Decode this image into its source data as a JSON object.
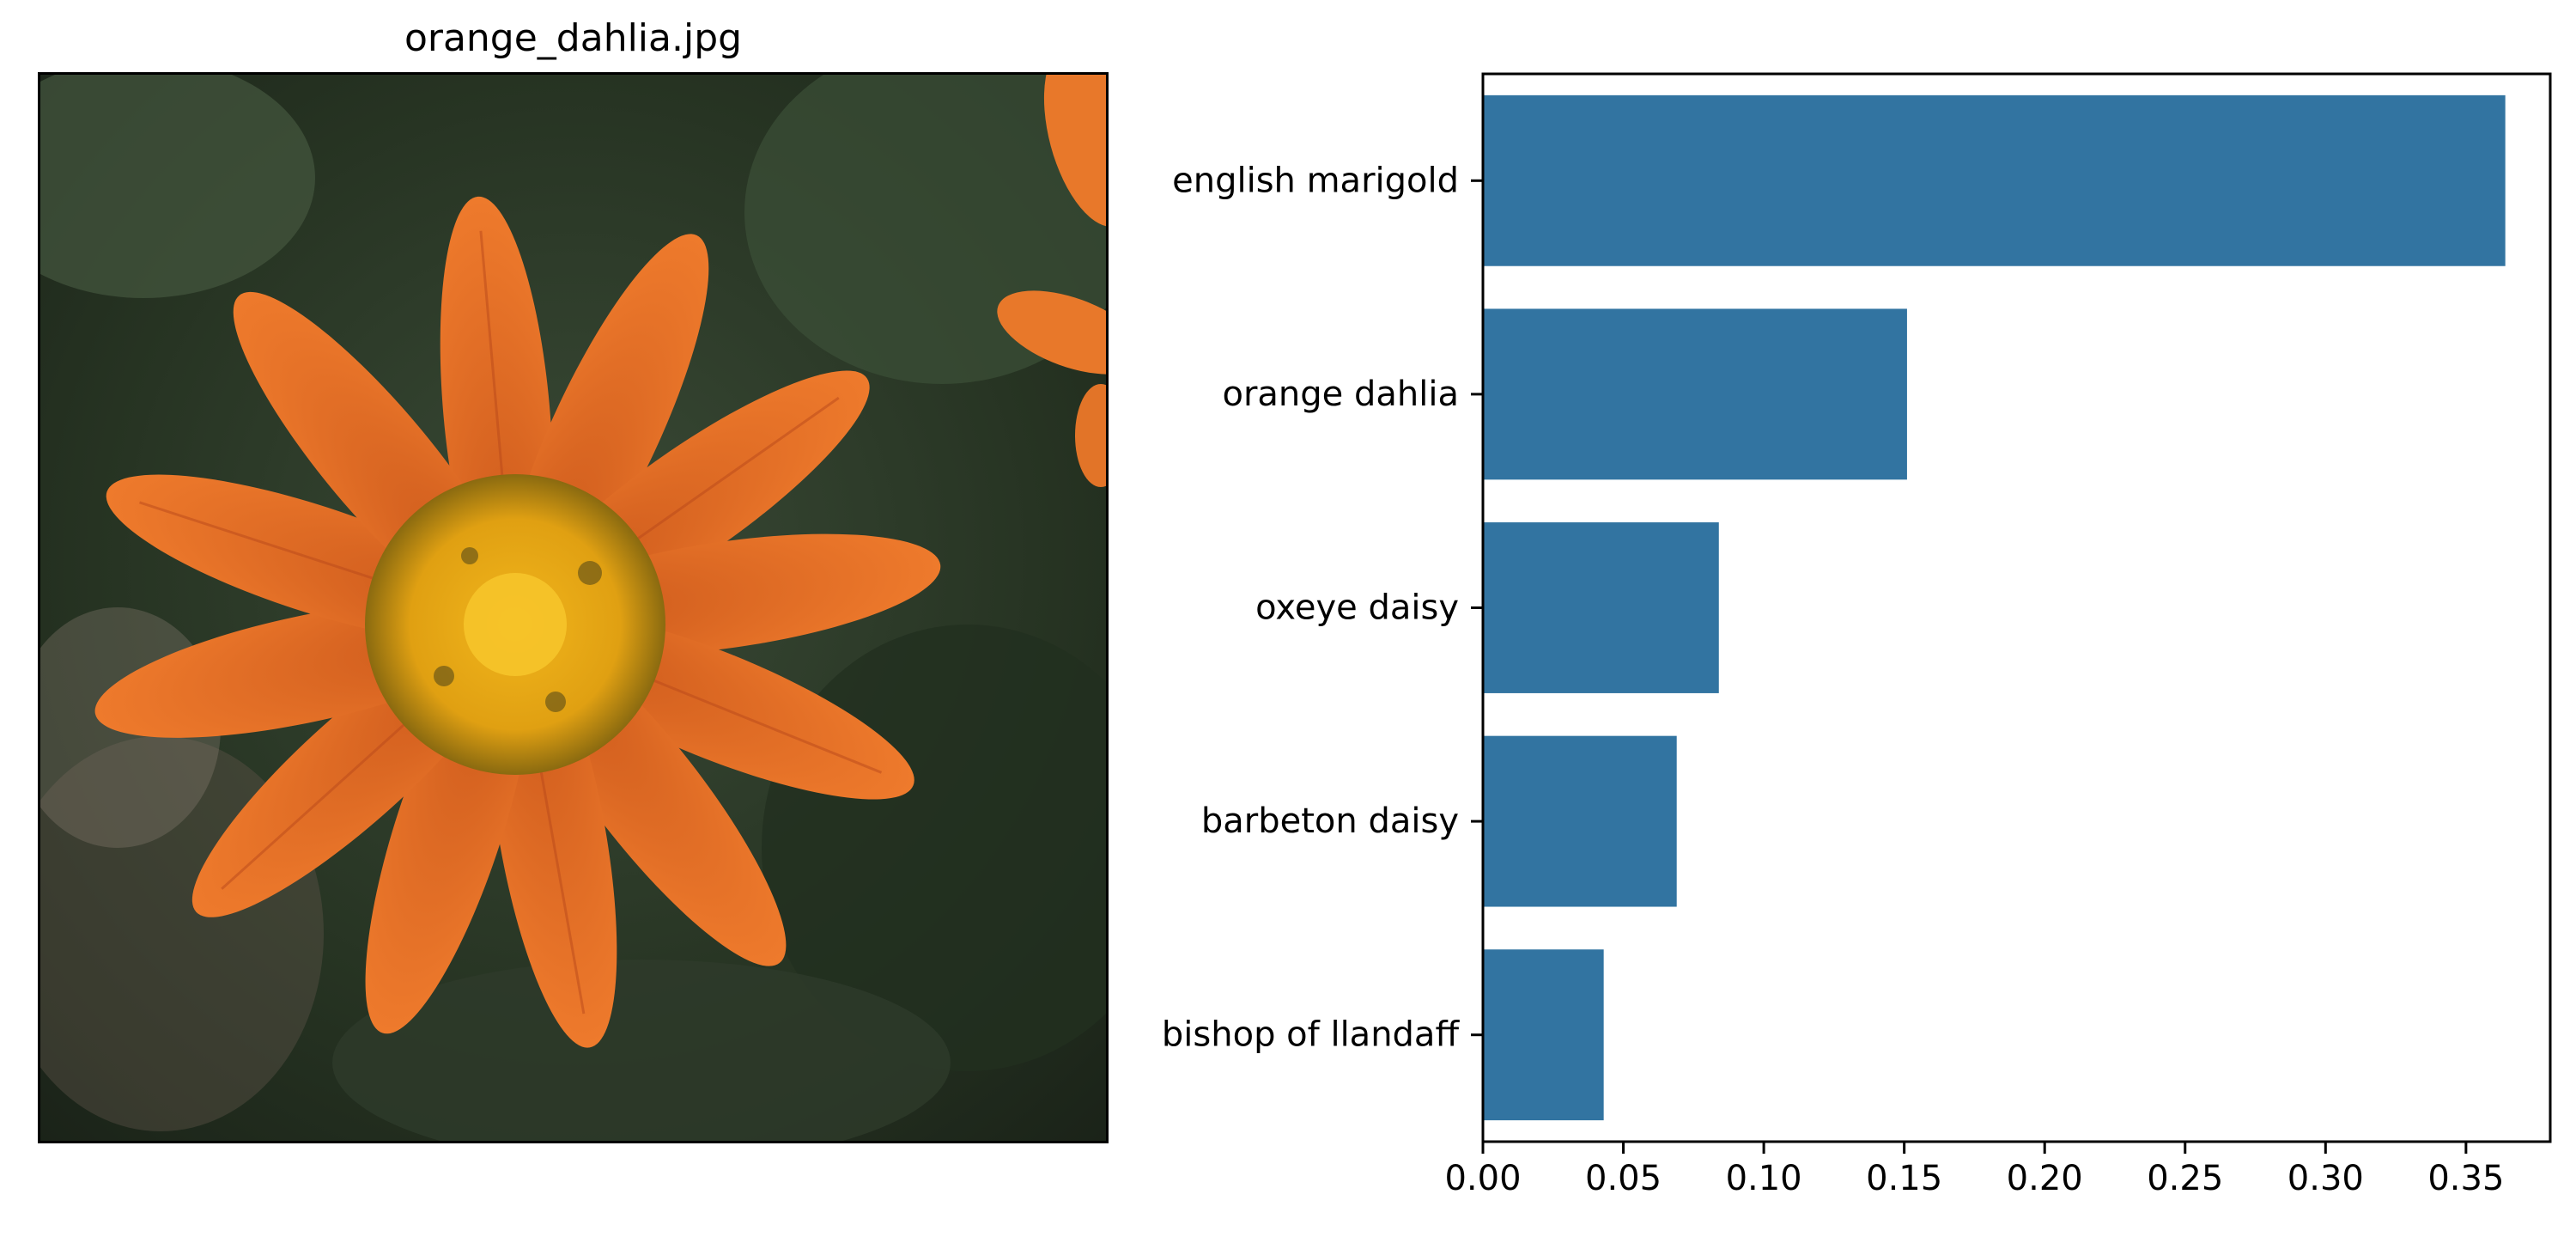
{
  "image_panel": {
    "title": "orange_dahlia.jpg",
    "image_subject": "orange-flower-photo"
  },
  "chart_data": {
    "type": "bar",
    "orientation": "horizontal",
    "categories": [
      "english marigold",
      "orange dahlia",
      "oxeye daisy",
      "barbeton daisy",
      "bishop of llandaff"
    ],
    "values": [
      0.364,
      0.151,
      0.084,
      0.069,
      0.043
    ],
    "xlim": [
      0,
      0.38
    ],
    "x_ticks": [
      "0.00",
      "0.05",
      "0.10",
      "0.15",
      "0.20",
      "0.25",
      "0.30",
      "0.35"
    ],
    "title": "",
    "xlabel": "",
    "ylabel": "",
    "bar_color": "#3274a1",
    "grid": false
  }
}
